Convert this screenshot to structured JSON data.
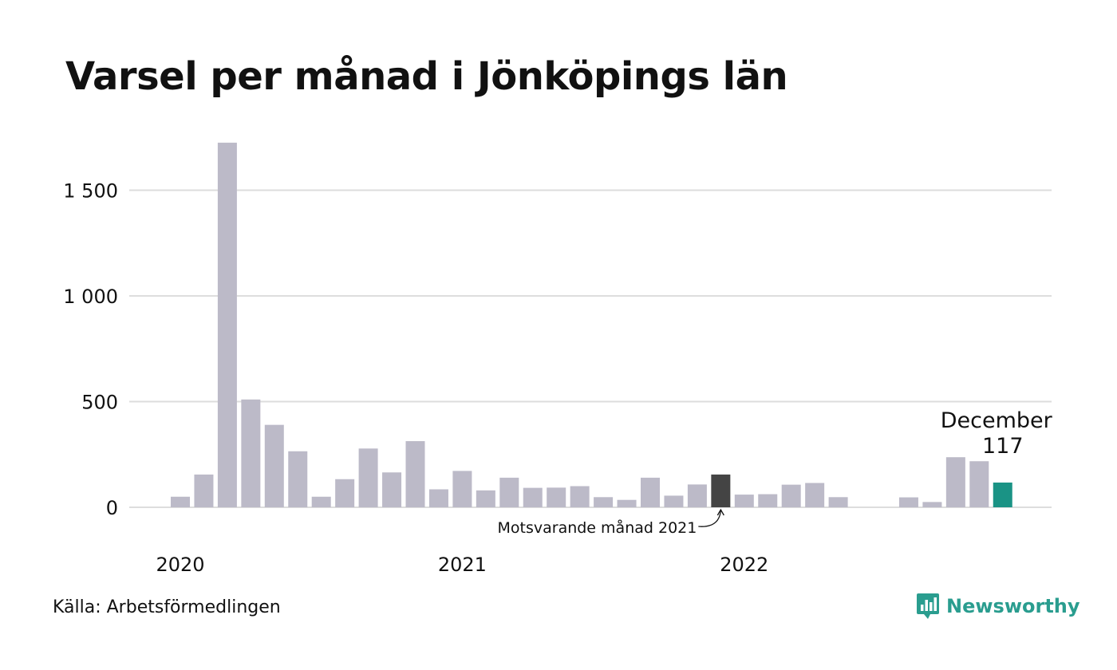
{
  "title": "Varsel per månad i Jönköpings län",
  "source": "Källa: Arbetsförmedlingen",
  "brand": {
    "name": "Newsworthy",
    "icon": "newsworthy-logo-icon"
  },
  "colors": {
    "default": "#bcbac8",
    "comparison": "#444444",
    "current": "#1a9385",
    "grid": "#dddddd",
    "brand": "#2a9d8f"
  },
  "chart_data": {
    "type": "bar",
    "title": "Varsel per månad i Jönköpings län",
    "xlabel": "",
    "ylabel": "",
    "ylim": [
      0,
      1800
    ],
    "y_ticks": [
      {
        "value": 0,
        "label": "0"
      },
      {
        "value": 500,
        "label": "500"
      },
      {
        "value": 1000,
        "label": "1 000"
      },
      {
        "value": 1500,
        "label": "1 500"
      }
    ],
    "x_ticks": [
      {
        "label": "2020",
        "at": "2020-01"
      },
      {
        "label": "2021",
        "at": "2021-01"
      },
      {
        "label": "2022",
        "at": "2022-01"
      }
    ],
    "grid": true,
    "categories": [
      "2020-01",
      "2020-02",
      "2020-03",
      "2020-04",
      "2020-05",
      "2020-06",
      "2020-07",
      "2020-08",
      "2020-09",
      "2020-10",
      "2020-11",
      "2020-12",
      "2021-01",
      "2021-02",
      "2021-03",
      "2021-04",
      "2021-05",
      "2021-06",
      "2021-07",
      "2021-08",
      "2021-09",
      "2021-10",
      "2021-11",
      "2021-12",
      "2022-01",
      "2022-02",
      "2022-03",
      "2022-04",
      "2022-05",
      "2022-06",
      "2022-07",
      "2022-08",
      "2022-09",
      "2022-10",
      "2022-11",
      "2022-12"
    ],
    "values": [
      50,
      155,
      1725,
      510,
      390,
      265,
      50,
      133,
      278,
      165,
      313,
      85,
      172,
      80,
      140,
      92,
      93,
      100,
      48,
      35,
      140,
      55,
      108,
      155,
      60,
      62,
      107,
      115,
      48,
      null,
      null,
      47,
      25,
      237,
      218,
      117
    ],
    "highlight": {
      "comparison": {
        "category": "2021-12",
        "annotation": "Motsvarande månad 2021"
      },
      "current": {
        "category": "2022-12",
        "label": "December",
        "value_label": "117"
      }
    }
  }
}
